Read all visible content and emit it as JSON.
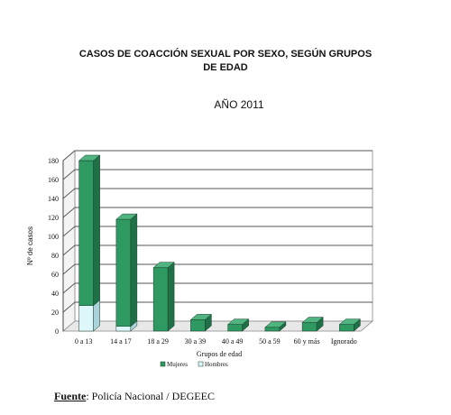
{
  "title_line1": "CASOS DE COACCIÓN SEXUAL POR SEXO, SEGÚN GRUPOS",
  "title_line2": "DE EDAD",
  "subtitle": "AÑO 2011",
  "source_label": "Fuente",
  "source_text": ": Policía Nacional / DEGEEC",
  "colors": {
    "mujeres": "#2e9a62",
    "mujeres_side": "#1f7046",
    "mujeres_top": "#4fb47f",
    "hombres": "#ddf7fa",
    "hombres_side": "#a9d3d8",
    "grid": "#555555"
  },
  "chart_data": {
    "type": "bar",
    "stacked": true,
    "style": "3d",
    "categories": [
      "0 a 13",
      "14 a 17",
      "18 a 29",
      "30 a 39",
      "40 a 49",
      "50 a 59",
      "60 y más",
      "Ignorado"
    ],
    "series": [
      {
        "name": "Mujeres",
        "values": [
          153,
          113,
          67,
          12,
          7,
          4,
          9,
          7
        ]
      },
      {
        "name": "Hombres",
        "values": [
          27,
          5,
          0,
          0,
          0,
          0,
          0,
          0
        ]
      }
    ],
    "xlabel": "Grupos de edad",
    "ylabel": "Nº de casos",
    "ylim": [
      0,
      180
    ],
    "yticks": [
      0,
      20,
      40,
      60,
      80,
      100,
      120,
      140,
      160,
      180
    ],
    "grid": true,
    "legend_position": "bottom"
  }
}
